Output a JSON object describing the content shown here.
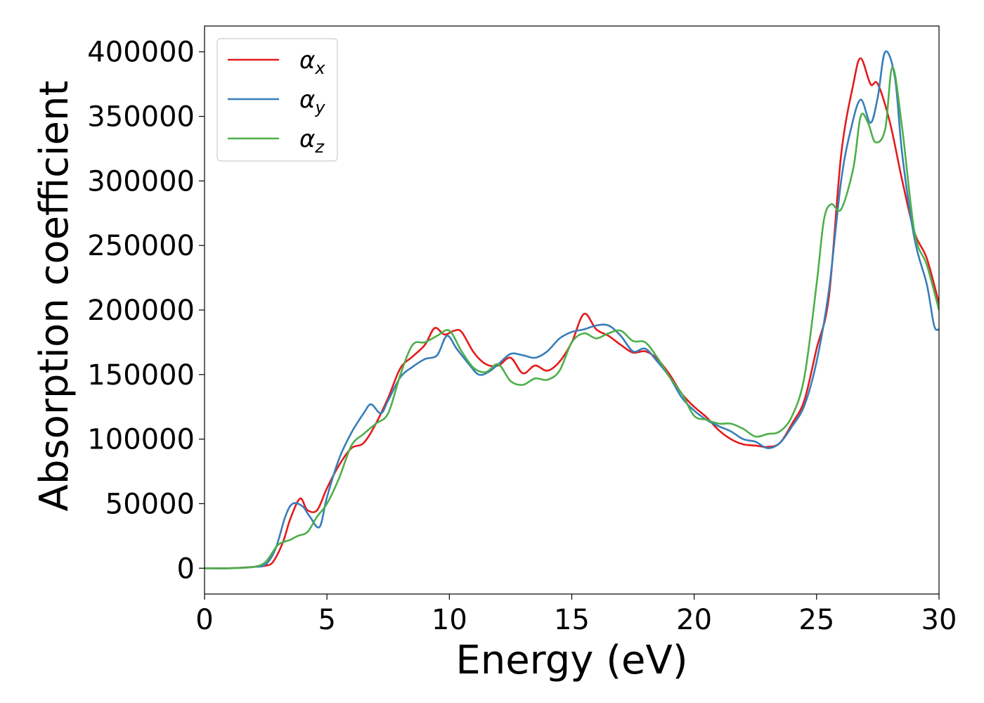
{
  "chart_data": {
    "type": "line",
    "title": "",
    "xlabel": "Energy (eV)",
    "ylabel": "Absorption coefficient",
    "xlim": [
      0,
      30
    ],
    "ylim": [
      -20000,
      420000
    ],
    "xticks": [
      0,
      5,
      10,
      15,
      20,
      25,
      30
    ],
    "yticks": [
      0,
      50000,
      100000,
      150000,
      200000,
      250000,
      300000,
      350000,
      400000
    ],
    "grid": false,
    "legend": {
      "position": "top-left",
      "entries": [
        {
          "symbol": "α",
          "sub": "x"
        },
        {
          "symbol": "α",
          "sub": "y"
        },
        {
          "symbol": "α",
          "sub": "z"
        }
      ]
    },
    "series": [
      {
        "name": "α_x",
        "color": "#e41a1c",
        "x": [
          0,
          1,
          2,
          2.5,
          2.8,
          3.2,
          3.5,
          3.9,
          4.2,
          4.6,
          5.0,
          5.5,
          6.0,
          6.5,
          7.0,
          7.5,
          8.0,
          8.5,
          9.0,
          9.4,
          9.8,
          10.2,
          10.5,
          11.0,
          11.5,
          12.0,
          12.5,
          13.0,
          13.5,
          14.0,
          14.5,
          15.0,
          15.5,
          16.0,
          16.5,
          17.0,
          17.5,
          18.0,
          18.5,
          19.0,
          19.5,
          20.0,
          20.5,
          21.0,
          21.5,
          22.0,
          22.5,
          23.0,
          23.5,
          24.0,
          24.5,
          25.0,
          25.5,
          26.0,
          26.5,
          26.8,
          27.2,
          27.5,
          28.0,
          28.5,
          29.0,
          29.5,
          30.0
        ],
        "y": [
          0,
          0,
          1000,
          2000,
          5000,
          20000,
          38000,
          54000,
          45000,
          45000,
          62000,
          80000,
          93000,
          97000,
          112000,
          132000,
          155000,
          164000,
          173000,
          186000,
          181000,
          184000,
          183000,
          167000,
          158000,
          157000,
          163000,
          151000,
          157000,
          153000,
          160000,
          175000,
          197000,
          185000,
          180000,
          173000,
          167000,
          168000,
          162000,
          150000,
          135000,
          125000,
          117000,
          107000,
          100000,
          96000,
          95000,
          94000,
          97000,
          112000,
          130000,
          170000,
          210000,
          320000,
          375000,
          395000,
          375000,
          375000,
          345000,
          300000,
          260000,
          240000,
          205000
        ]
      },
      {
        "name": "α_y",
        "color": "#377eb8",
        "x": [
          0,
          1,
          2,
          2.5,
          2.9,
          3.3,
          3.6,
          4.0,
          4.3,
          4.7,
          5.0,
          5.5,
          6.0,
          6.5,
          6.8,
          7.2,
          7.5,
          8.0,
          8.5,
          9.0,
          9.5,
          9.9,
          10.3,
          10.8,
          11.2,
          11.6,
          12.0,
          12.5,
          13.0,
          13.5,
          14.0,
          14.5,
          15.0,
          15.5,
          16.0,
          16.5,
          17.0,
          17.5,
          18.0,
          18.5,
          19.0,
          19.5,
          20.0,
          20.5,
          21.0,
          21.5,
          22.0,
          22.5,
          23.0,
          23.5,
          24.0,
          24.5,
          25.0,
          25.5,
          26.0,
          26.4,
          26.8,
          27.2,
          27.5,
          27.8,
          28.2,
          28.5,
          29.0,
          29.5,
          29.8,
          30.0
        ],
        "y": [
          0,
          0,
          1000,
          3000,
          15000,
          40000,
          50000,
          48000,
          40000,
          32000,
          55000,
          85000,
          105000,
          120000,
          127000,
          120000,
          130000,
          148000,
          156000,
          162000,
          165000,
          180000,
          170000,
          158000,
          150000,
          152000,
          158000,
          166000,
          165000,
          163000,
          168000,
          178000,
          183000,
          185000,
          188000,
          188000,
          180000,
          168000,
          170000,
          160000,
          148000,
          132000,
          122000,
          115000,
          110000,
          106000,
          100000,
          98000,
          93000,
          97000,
          110000,
          126000,
          160000,
          215000,
          300000,
          340000,
          363000,
          345000,
          365000,
          400000,
          380000,
          320000,
          255000,
          220000,
          188000,
          185000
        ]
      },
      {
        "name": "α_z",
        "color": "#4daf4a",
        "x": [
          0,
          1,
          2,
          2.5,
          3.0,
          3.5,
          3.8,
          4.2,
          4.6,
          5.0,
          5.5,
          6.0,
          6.5,
          7.0,
          7.5,
          8.0,
          8.5,
          9.0,
          9.5,
          10.0,
          10.5,
          11.0,
          11.5,
          12.0,
          12.5,
          13.0,
          13.5,
          14.0,
          14.5,
          15.0,
          15.5,
          16.0,
          16.5,
          17.0,
          17.5,
          18.0,
          18.5,
          19.0,
          19.5,
          20.0,
          20.5,
          21.0,
          21.5,
          22.0,
          22.5,
          23.0,
          23.5,
          24.0,
          24.5,
          25.0,
          25.3,
          25.6,
          26.0,
          26.5,
          26.8,
          27.1,
          27.4,
          27.8,
          28.1,
          28.5,
          29.0,
          29.5,
          30.0
        ],
        "y": [
          0,
          0,
          1000,
          5000,
          18000,
          22000,
          25000,
          28000,
          40000,
          50000,
          70000,
          95000,
          104000,
          112000,
          120000,
          150000,
          173000,
          175000,
          180000,
          184000,
          168000,
          155000,
          152000,
          158000,
          145000,
          142000,
          147000,
          146000,
          153000,
          175000,
          182000,
          178000,
          182000,
          184000,
          176000,
          175000,
          163000,
          148000,
          135000,
          118000,
          115000,
          112000,
          112000,
          108000,
          102000,
          104000,
          106000,
          118000,
          148000,
          220000,
          270000,
          282000,
          278000,
          310000,
          350000,
          345000,
          330000,
          340000,
          388000,
          340000,
          260000,
          235000,
          200000
        ]
      }
    ]
  }
}
